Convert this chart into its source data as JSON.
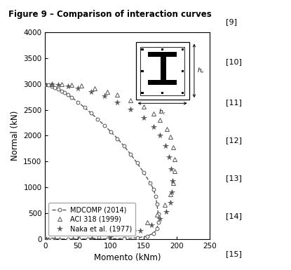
{
  "title": "Figure 9 – Comparison of interaction curves",
  "title_bg": "#E8A020",
  "xlabel": "Momento (kNm)",
  "ylabel": "Normal (kN)",
  "xlim": [
    0,
    250
  ],
  "ylim": [
    0,
    4000
  ],
  "xticks": [
    0,
    50,
    100,
    150,
    200,
    250
  ],
  "yticks": [
    0,
    500,
    1000,
    1500,
    2000,
    2500,
    3000,
    3500,
    4000
  ],
  "mdcomp_x": [
    0,
    5,
    10,
    15,
    20,
    25,
    30,
    35,
    40,
    50,
    60,
    70,
    80,
    90,
    100,
    110,
    120,
    130,
    140,
    150,
    160,
    165,
    168,
    170,
    172,
    172,
    170,
    165,
    155,
    140,
    120,
    95,
    65,
    35,
    10,
    0
  ],
  "mdcomp_y": [
    3000,
    2980,
    2960,
    2930,
    2900,
    2865,
    2830,
    2790,
    2745,
    2650,
    2545,
    2435,
    2320,
    2200,
    2075,
    1945,
    1800,
    1640,
    1470,
    1285,
    1080,
    960,
    820,
    680,
    490,
    320,
    195,
    110,
    55,
    22,
    8,
    3,
    1,
    0,
    0,
    0
  ],
  "aci_x": [
    0,
    10,
    25,
    40,
    55,
    75,
    95,
    110,
    130,
    150,
    165,
    175,
    185,
    190,
    195,
    197,
    197,
    195,
    190,
    182,
    170,
    155,
    135,
    110,
    82,
    52,
    22,
    5,
    0
  ],
  "aci_y": [
    3000,
    3000,
    3000,
    2990,
    2965,
    2920,
    2855,
    2790,
    2690,
    2560,
    2430,
    2300,
    2130,
    1980,
    1780,
    1550,
    1310,
    1080,
    860,
    660,
    475,
    325,
    200,
    110,
    45,
    13,
    2,
    0,
    0
  ],
  "naka_x": [
    0,
    10,
    20,
    35,
    50,
    70,
    90,
    110,
    130,
    150,
    165,
    175,
    183,
    188,
    192,
    194,
    193,
    190,
    184,
    175,
    162,
    145,
    124,
    99,
    71,
    42,
    15,
    2,
    0
  ],
  "naka_y": [
    3000,
    2995,
    2985,
    2960,
    2920,
    2855,
    2765,
    2650,
    2510,
    2345,
    2175,
    2000,
    1800,
    1590,
    1360,
    1120,
    900,
    700,
    530,
    385,
    265,
    165,
    88,
    38,
    12,
    3,
    0,
    0,
    0
  ],
  "mdcomp_color": "#555555",
  "aci_color": "#555555",
  "naka_color": "#555555",
  "bg_right_color": "#f0f0f0",
  "refs": [
    "[9]",
    "[10]",
    "[11]",
    "[12]",
    "[13]",
    "[14]",
    "[15]"
  ]
}
